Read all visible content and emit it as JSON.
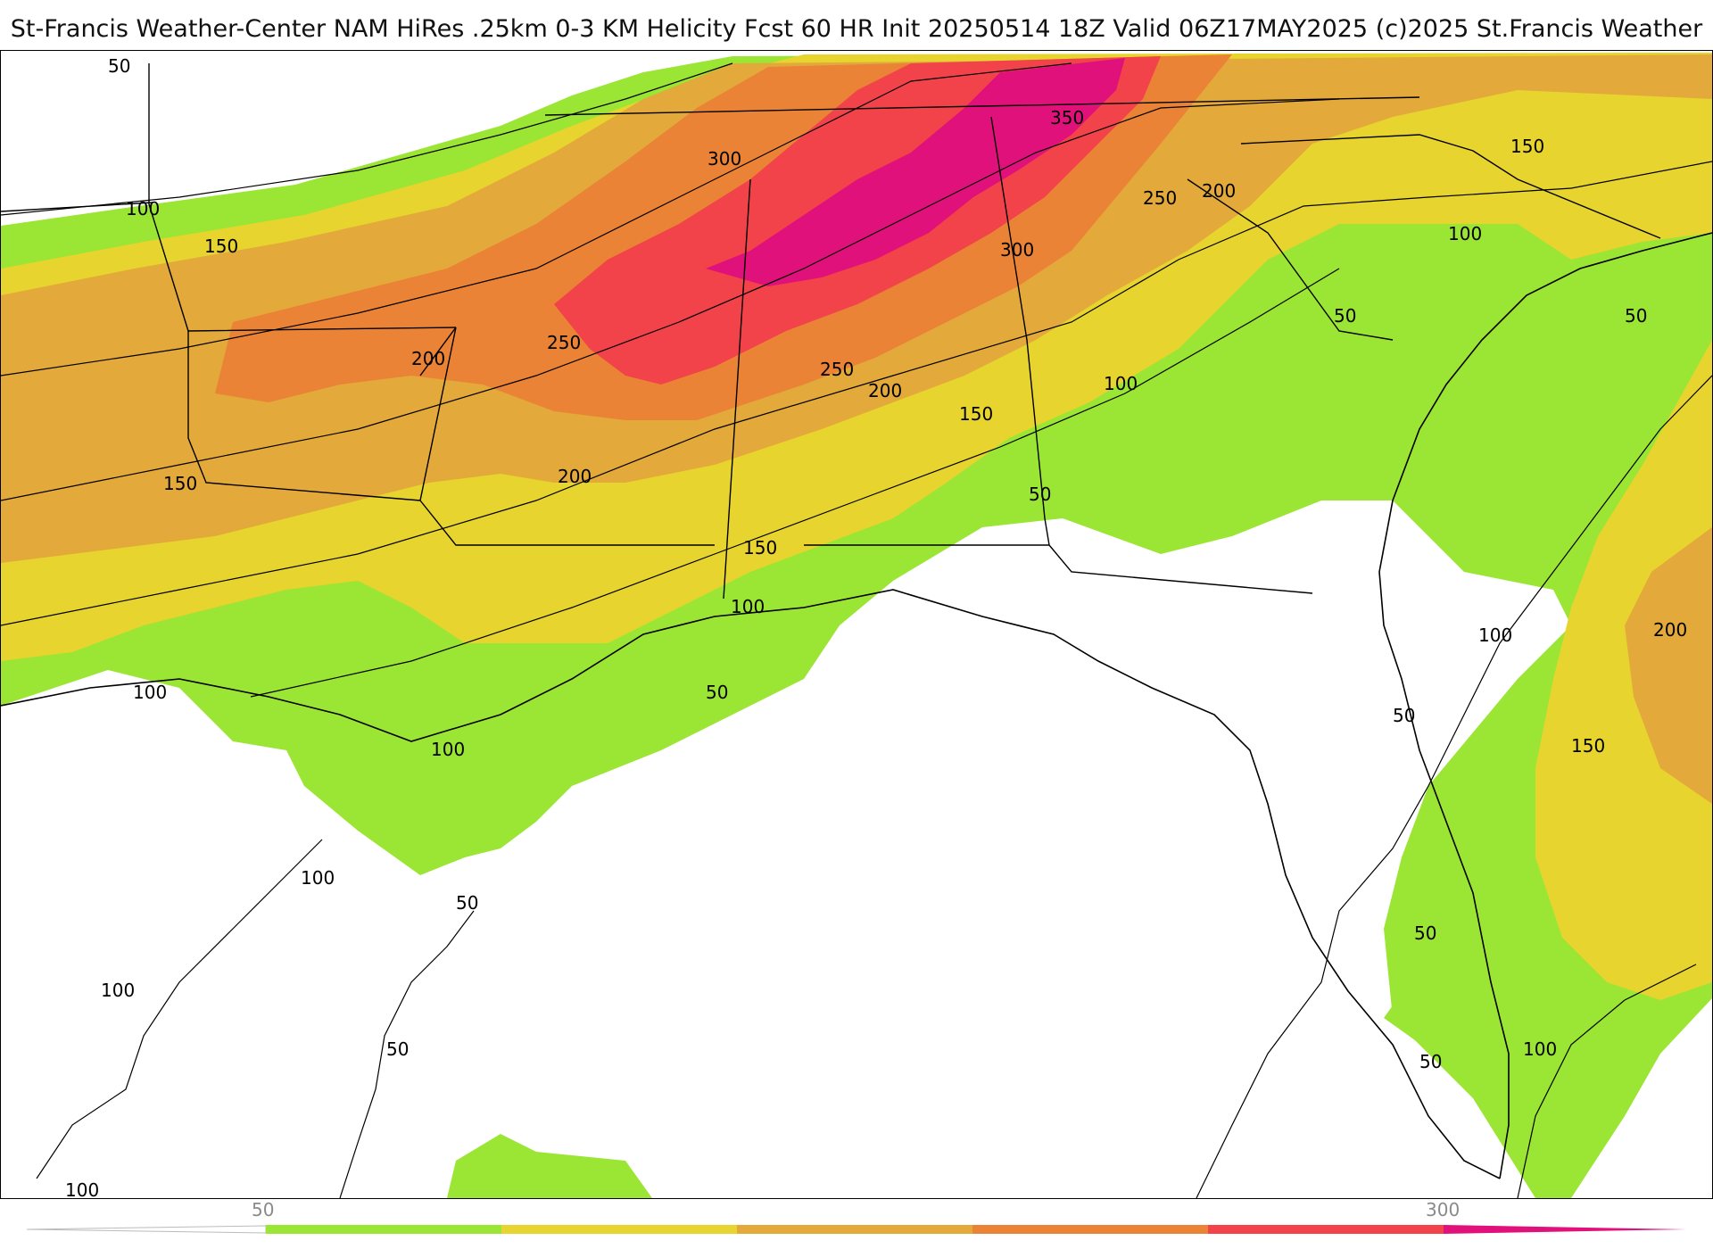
{
  "header": {
    "title": "St-Francis Weather-Center NAM HiRes .25km 0-3 KM Helicity Fcst 60 HR Init 20250514 18Z  Valid 06Z17MAY2025    (c)2025 St.Francis Weather"
  },
  "contour_labels": [
    "50",
    "100",
    "150",
    "200",
    "250",
    "300",
    "350"
  ],
  "colorbar": {
    "tick_labels": [
      "50",
      "300"
    ],
    "colors": [
      "#ffffff",
      "#9be534",
      "#e8d42e",
      "#e3a93a",
      "#ea8336",
      "#f2424a",
      "#e0117a"
    ]
  },
  "legend_colors": {
    "50": "#9be534",
    "100": "#e8d42e",
    "150": "#e3a93a",
    "200": "#ea8336",
    "250": "#f2424a",
    "300": "#e0117a"
  }
}
